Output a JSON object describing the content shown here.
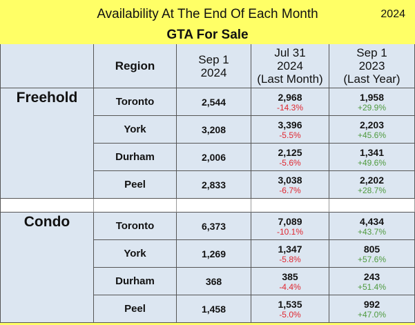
{
  "header": {
    "title": "Availability At The End Of Each Month",
    "year": "2024",
    "subtitle": "GTA For Sale"
  },
  "columns": {
    "region": "Region",
    "current": [
      "Sep 1",
      "2024"
    ],
    "last_month": [
      "Jul 31",
      "2024",
      "(Last Month)"
    ],
    "last_year": [
      "Sep 1",
      "2023",
      "(Last Year)"
    ]
  },
  "groups": [
    {
      "name": "Freehold",
      "rows": [
        {
          "region": "Toronto",
          "current": "2,544",
          "last_month": "2,968",
          "last_month_change": "-14.3%",
          "last_year": "1,958",
          "last_year_change": "+29.9%"
        },
        {
          "region": "York",
          "current": "3,208",
          "last_month": "3,396",
          "last_month_change": "-5.5%",
          "last_year": "2,203",
          "last_year_change": "+45.6%"
        },
        {
          "region": "Durham",
          "current": "2,006",
          "last_month": "2,125",
          "last_month_change": "-5.6%",
          "last_year": "1,341",
          "last_year_change": "+49.6%"
        },
        {
          "region": "Peel",
          "current": "2,833",
          "last_month": "3,038",
          "last_month_change": "-6.7%",
          "last_year": "2,202",
          "last_year_change": "+28.7%"
        }
      ]
    },
    {
      "name": "Condo",
      "rows": [
        {
          "region": "Toronto",
          "current": "6,373",
          "last_month": "7,089",
          "last_month_change": "-10.1%",
          "last_year": "4,434",
          "last_year_change": "+43.7%"
        },
        {
          "region": "York",
          "current": "1,269",
          "last_month": "1,347",
          "last_month_change": "-5.8%",
          "last_year": "805",
          "last_year_change": "+57.6%"
        },
        {
          "region": "Durham",
          "current": "368",
          "last_month": "385",
          "last_month_change": "-4.4%",
          "last_year": "243",
          "last_year_change": "+51.4%"
        },
        {
          "region": "Peel",
          "current": "1,458",
          "last_month": "1,535",
          "last_month_change": "-5.0%",
          "last_year": "992",
          "last_year_change": "+47.0%"
        }
      ]
    }
  ],
  "colors": {
    "background": "#ffff66",
    "cell": "#dce6f1",
    "negative": "#e0262f",
    "positive": "#4e9a3e"
  }
}
